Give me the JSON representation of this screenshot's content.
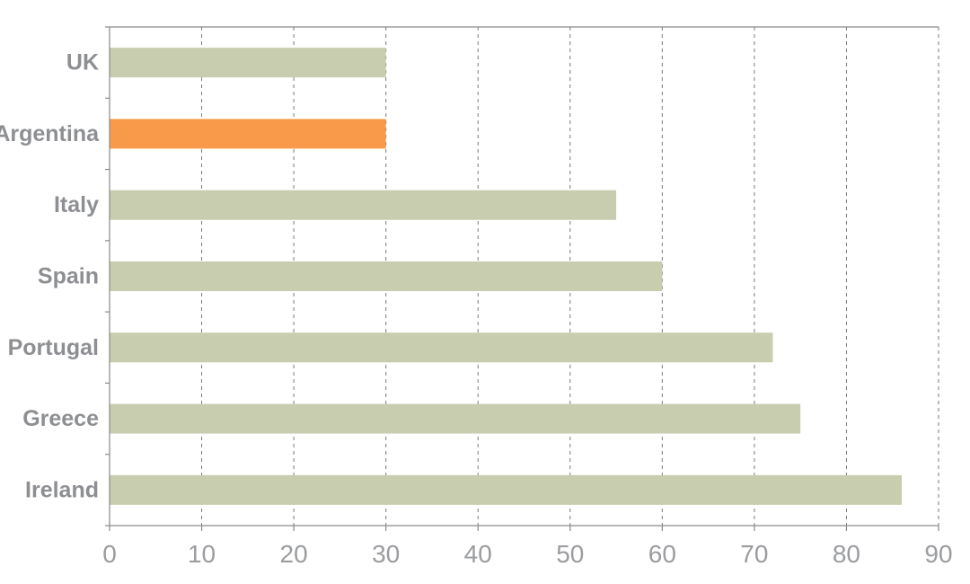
{
  "chart_data": {
    "type": "bar",
    "orientation": "horizontal",
    "title": "",
    "xlabel": "",
    "ylabel": "",
    "categories": [
      "UK",
      "Argentina",
      "Italy",
      "Spain",
      "Portugal",
      "Greece",
      "Ireland"
    ],
    "values": [
      30,
      30,
      55,
      60,
      72,
      75,
      86
    ],
    "highlight_index": 1,
    "xlim": [
      0,
      90
    ],
    "xticks": [
      "0",
      "10",
      "20",
      "30",
      "40",
      "50",
      "60",
      "70",
      "80",
      "90"
    ],
    "grid": true,
    "legend": "none",
    "colors": {
      "bar": "#c7cdae",
      "highlight": "#f99a4a"
    }
  }
}
